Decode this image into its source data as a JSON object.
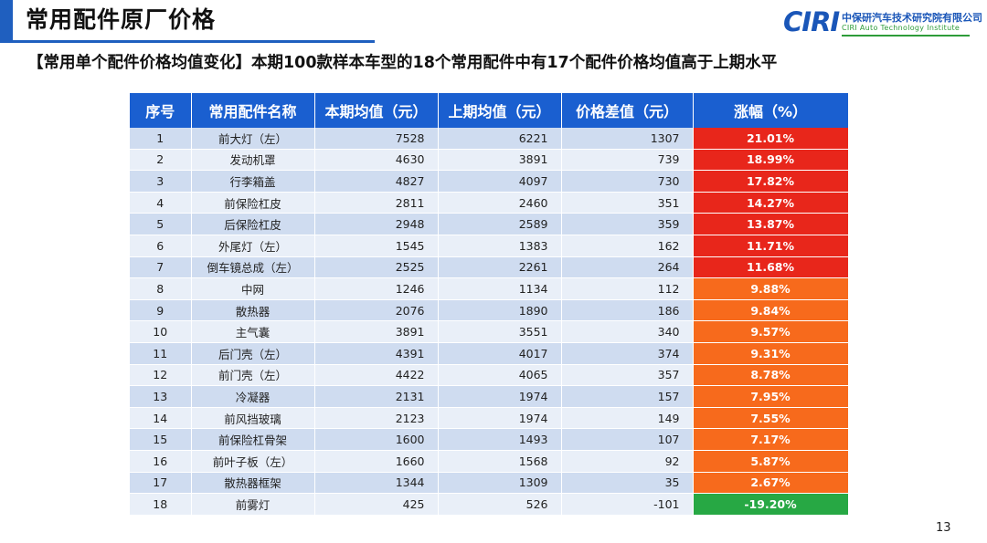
{
  "slide": {
    "title": "常用配件原厂价格",
    "subtitle": "【常用单个配件价格均值变化】本期100款样本车型的18个常用配件中有17个配件价格均值高于上期水平",
    "page_number": "13"
  },
  "logo": {
    "mark": "CIRI",
    "name_cn": "中保研汽车技术研究院有限公司",
    "name_en": "CIRI Auto Technology Institute"
  },
  "colors": {
    "header_blue": "#1a5fd0",
    "high_red": "#e8261b",
    "mid_orange": "#f76a1c",
    "negative_green": "#27a844"
  },
  "table": {
    "headers": [
      "序号",
      "常用配件名称",
      "本期均值（元）",
      "上期均值（元）",
      "价格差值（元）",
      "涨幅（%）"
    ],
    "rows": [
      {
        "no": "1",
        "name": "前大灯（左）",
        "current": "7528",
        "previous": "6221",
        "diff": "1307",
        "change": "21.01%",
        "level": "high"
      },
      {
        "no": "2",
        "name": "发动机罩",
        "current": "4630",
        "previous": "3891",
        "diff": "739",
        "change": "18.99%",
        "level": "high"
      },
      {
        "no": "3",
        "name": "行李箱盖",
        "current": "4827",
        "previous": "4097",
        "diff": "730",
        "change": "17.82%",
        "level": "high"
      },
      {
        "no": "4",
        "name": "前保险杠皮",
        "current": "2811",
        "previous": "2460",
        "diff": "351",
        "change": "14.27%",
        "level": "high"
      },
      {
        "no": "5",
        "name": "后保险杠皮",
        "current": "2948",
        "previous": "2589",
        "diff": "359",
        "change": "13.87%",
        "level": "high"
      },
      {
        "no": "6",
        "name": "外尾灯（左）",
        "current": "1545",
        "previous": "1383",
        "diff": "162",
        "change": "11.71%",
        "level": "high"
      },
      {
        "no": "7",
        "name": "倒车镜总成（左）",
        "current": "2525",
        "previous": "2261",
        "diff": "264",
        "change": "11.68%",
        "level": "high"
      },
      {
        "no": "8",
        "name": "中网",
        "current": "1246",
        "previous": "1134",
        "diff": "112",
        "change": "9.88%",
        "level": "mid"
      },
      {
        "no": "9",
        "name": "散热器",
        "current": "2076",
        "previous": "1890",
        "diff": "186",
        "change": "9.84%",
        "level": "mid"
      },
      {
        "no": "10",
        "name": "主气囊",
        "current": "3891",
        "previous": "3551",
        "diff": "340",
        "change": "9.57%",
        "level": "mid"
      },
      {
        "no": "11",
        "name": "后门壳（左）",
        "current": "4391",
        "previous": "4017",
        "diff": "374",
        "change": "9.31%",
        "level": "mid"
      },
      {
        "no": "12",
        "name": "前门壳（左）",
        "current": "4422",
        "previous": "4065",
        "diff": "357",
        "change": "8.78%",
        "level": "mid"
      },
      {
        "no": "13",
        "name": "冷凝器",
        "current": "2131",
        "previous": "1974",
        "diff": "157",
        "change": "7.95%",
        "level": "mid"
      },
      {
        "no": "14",
        "name": "前风挡玻璃",
        "current": "2123",
        "previous": "1974",
        "diff": "149",
        "change": "7.55%",
        "level": "mid"
      },
      {
        "no": "15",
        "name": "前保险杠骨架",
        "current": "1600",
        "previous": "1493",
        "diff": "107",
        "change": "7.17%",
        "level": "mid"
      },
      {
        "no": "16",
        "name": "前叶子板（左）",
        "current": "1660",
        "previous": "1568",
        "diff": "92",
        "change": "5.87%",
        "level": "mid"
      },
      {
        "no": "17",
        "name": "散热器框架",
        "current": "1344",
        "previous": "1309",
        "diff": "35",
        "change": "2.67%",
        "level": "mid"
      },
      {
        "no": "18",
        "name": "前雾灯",
        "current": "425",
        "previous": "526",
        "diff": "-101",
        "change": "-19.20%",
        "level": "negative"
      }
    ]
  }
}
